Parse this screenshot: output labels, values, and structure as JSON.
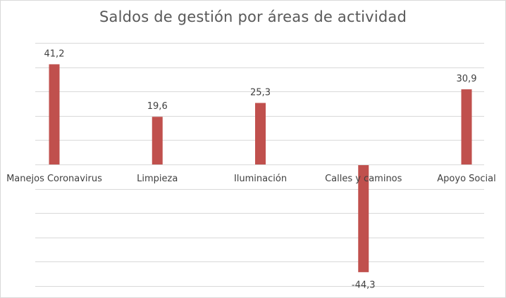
{
  "chart_data": {
    "type": "bar",
    "title": "Saldos de gestión por áreas de actividad",
    "categories": [
      "Manejos Coronavirus",
      "Limpieza",
      "Iluminación",
      "Calles y caminos",
      "Apoyo Social"
    ],
    "values": [
      41.2,
      19.6,
      25.3,
      -44.3,
      30.9
    ],
    "data_labels": [
      "41,2",
      "19,6",
      "25,3",
      "-44,3",
      "30,9"
    ],
    "ylim": [
      -50,
      50
    ],
    "grid": true,
    "legend": "none",
    "xlabel": "",
    "ylabel": "",
    "bar_color": "#c0504d",
    "grid_color": "#d9d9d9",
    "axis_color": "#d9d9d9",
    "text_color": "#404040"
  }
}
